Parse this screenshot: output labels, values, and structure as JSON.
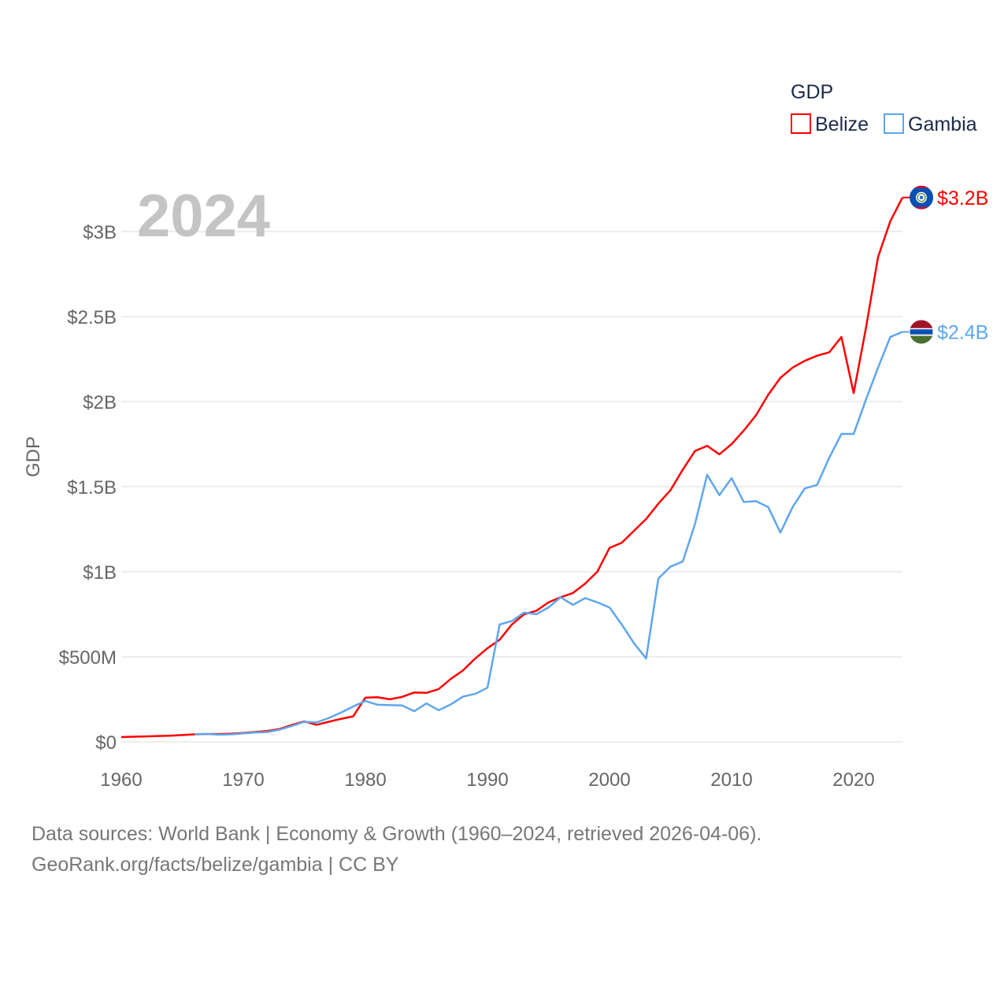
{
  "chart_data": {
    "type": "line",
    "title": "2024",
    "xlabel": "",
    "ylabel": "GDP",
    "xlim": [
      1960,
      2024
    ],
    "ylim": [
      0,
      3.2
    ],
    "grid": true,
    "legend": {
      "title": "GDP",
      "placement": "top-right"
    },
    "x_ticks": [
      1960,
      1970,
      1980,
      1990,
      2000,
      2010,
      2020
    ],
    "x_tick_labels": [
      "1960",
      "1970",
      "1980",
      "1990",
      "2000",
      "2010",
      "2020"
    ],
    "y_ticks": [
      0,
      0.5,
      1,
      1.5,
      2,
      2.5,
      3
    ],
    "y_tick_labels": [
      "$0",
      "$500M",
      "$1B",
      "$1.5B",
      "$2B",
      "$2.5B",
      "$3B"
    ],
    "units": "USD billions",
    "series": [
      {
        "name": "Belize",
        "color": "#ff0000",
        "end_label": "$3.2B",
        "flag": "belize-flag",
        "start_year": 1960,
        "values": [
          0.028,
          0.03,
          0.032,
          0.034,
          0.036,
          0.04,
          0.044,
          0.046,
          0.046,
          0.048,
          0.052,
          0.058,
          0.064,
          0.076,
          0.1,
          0.12,
          0.1,
          0.118,
          0.135,
          0.15,
          0.26,
          0.262,
          0.25,
          0.264,
          0.29,
          0.288,
          0.31,
          0.37,
          0.42,
          0.49,
          0.55,
          0.6,
          0.69,
          0.75,
          0.77,
          0.82,
          0.85,
          0.875,
          0.93,
          1.0,
          1.14,
          1.17,
          1.24,
          1.31,
          1.4,
          1.48,
          1.6,
          1.71,
          1.74,
          1.69,
          1.75,
          1.83,
          1.92,
          2.04,
          2.14,
          2.2,
          2.24,
          2.27,
          2.29,
          2.38,
          2.05,
          2.43,
          2.85,
          3.06,
          3.2
        ]
      },
      {
        "name": "Gambia",
        "color": "#5ea6ee",
        "end_label": "$2.4B",
        "flag": "gambia-flag",
        "start_year": 1966,
        "values": [
          0.045,
          0.046,
          0.042,
          0.044,
          0.05,
          0.055,
          0.058,
          0.072,
          0.094,
          0.118,
          0.114,
          0.14,
          0.172,
          0.208,
          0.24,
          0.218,
          0.216,
          0.214,
          0.18,
          0.226,
          0.186,
          0.22,
          0.266,
          0.282,
          0.318,
          0.69,
          0.71,
          0.76,
          0.75,
          0.79,
          0.85,
          0.805,
          0.845,
          0.82,
          0.79,
          0.69,
          0.58,
          0.49,
          0.96,
          1.03,
          1.06,
          1.28,
          1.57,
          1.45,
          1.55,
          1.41,
          1.415,
          1.38,
          1.23,
          1.38,
          1.49,
          1.51,
          1.67,
          1.81,
          1.81,
          2.01,
          2.2,
          2.38,
          2.41
        ]
      }
    ]
  },
  "footer": {
    "line1": "Data sources: World Bank | Economy & Growth (1960–2024, retrieved 2026-04-06).",
    "line2": "GeoRank.org/facts/belize/gambia | CC BY"
  }
}
